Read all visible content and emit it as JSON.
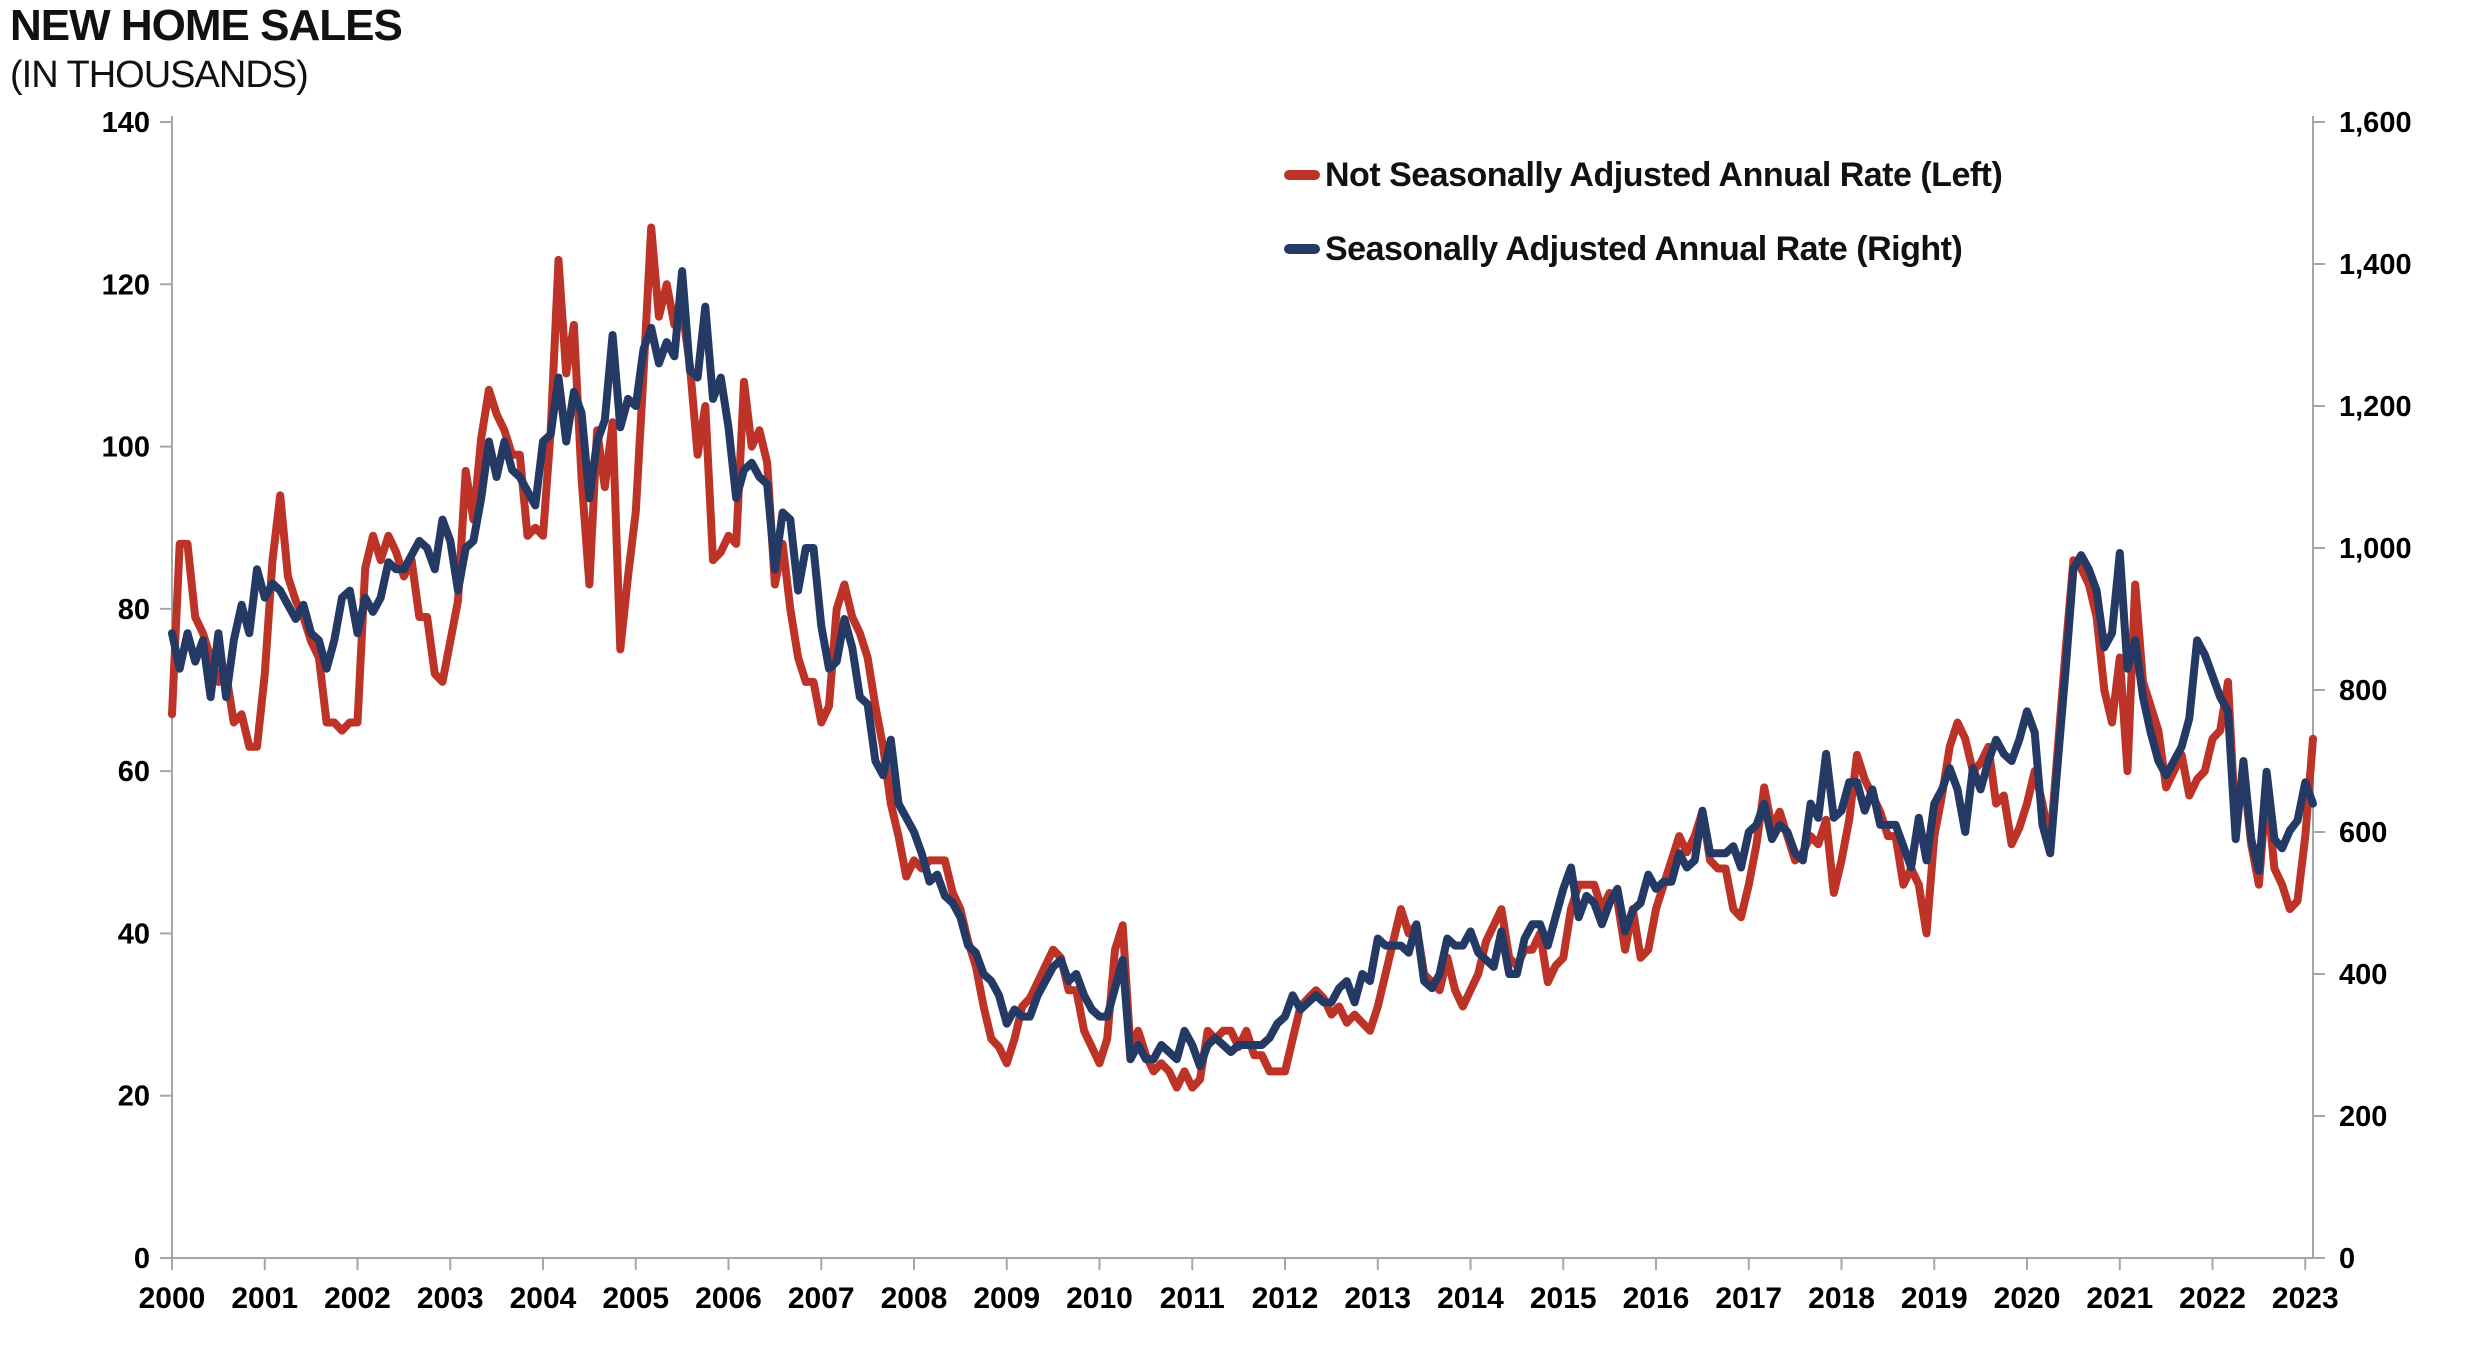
{
  "title": "NEW HOME SALES",
  "subtitle": "(IN THOUSANDS)",
  "legend": {
    "items": [
      {
        "label": "Not Seasonally Adjusted Annual Rate (Left)",
        "color": "#BE3328"
      },
      {
        "label": "Seasonally Adjusted Annual Rate (Right)",
        "color": "#243A64"
      }
    ]
  },
  "chart_data": {
    "type": "line",
    "title": "NEW HOME SALES (IN THOUSANDS)",
    "frequency": "monthly",
    "x_start": "2000-01",
    "x_end": "2023-02",
    "grid": "off",
    "legend_position": "top-right-inside",
    "x_tick_labels": [
      "2000",
      "2001",
      "2002",
      "2003",
      "2004",
      "2005",
      "2006",
      "2007",
      "2008",
      "2009",
      "2010",
      "2011",
      "2012",
      "2013",
      "2014",
      "2015",
      "2016",
      "2017",
      "2018",
      "2019",
      "2020",
      "2021",
      "2022",
      "2023"
    ],
    "left_axis": {
      "min": 0,
      "max": 140,
      "step": 20,
      "tick_labels": [
        "0",
        "20",
        "40",
        "60",
        "80",
        "100",
        "120",
        "140"
      ]
    },
    "right_axis": {
      "min": 0,
      "max": 1600,
      "step": 200,
      "tick_labels": [
        "0",
        "200",
        "400",
        "600",
        "800",
        "1,000",
        "1,200",
        "1,400",
        "1,600"
      ]
    },
    "axis_color": "#A6A6A6",
    "series": [
      {
        "name": "Not Seasonally Adjusted Annual Rate (Left)",
        "axis": "left",
        "color": "#BE3328",
        "values": [
          67,
          88,
          88,
          79,
          77,
          74,
          71,
          72,
          66,
          67,
          63,
          63,
          72,
          86,
          94,
          84,
          81,
          79,
          76,
          74,
          66,
          66,
          65,
          66,
          66,
          85,
          89,
          86,
          89,
          87,
          84,
          86,
          79,
          79,
          72,
          71,
          76,
          81,
          97,
          91,
          101,
          107,
          104,
          102,
          99,
          99,
          89,
          90,
          89,
          102,
          123,
          109,
          115,
          96,
          83,
          102,
          95,
          103,
          75,
          84,
          92,
          109,
          127,
          116,
          120,
          115,
          117,
          110,
          99,
          105,
          86,
          87,
          89,
          88,
          108,
          100,
          102,
          98,
          83,
          88,
          80,
          74,
          71,
          71,
          66,
          68,
          80,
          83,
          79,
          77,
          74,
          68,
          63,
          56,
          52,
          47,
          49,
          48,
          49,
          49,
          49,
          45,
          43,
          39,
          36,
          31,
          27,
          26,
          24,
          27,
          31,
          32,
          34,
          36,
          38,
          37,
          33,
          33,
          28,
          26,
          24,
          27,
          38,
          41,
          26,
          28,
          25,
          23,
          24,
          23,
          21,
          23,
          21,
          22,
          28,
          27,
          28,
          28,
          26,
          28,
          25,
          25,
          23,
          23,
          23,
          27,
          31,
          32,
          33,
          32,
          30,
          31,
          29,
          30,
          29,
          28,
          31,
          35,
          39,
          43,
          40,
          41,
          35,
          34,
          33,
          37,
          33,
          31,
          33,
          35,
          39,
          41,
          43,
          37,
          36,
          38,
          38,
          40,
          34,
          36,
          37,
          43,
          46,
          46,
          46,
          43,
          45,
          44,
          38,
          43,
          37,
          38,
          43,
          46,
          49,
          52,
          50,
          52,
          55,
          49,
          48,
          48,
          43,
          42,
          46,
          51,
          58,
          53,
          55,
          52,
          49,
          50,
          52,
          51,
          54,
          45,
          49,
          54,
          62,
          59,
          57,
          55,
          52,
          52,
          46,
          48,
          46,
          40,
          52,
          57,
          63,
          66,
          64,
          60,
          61,
          63,
          56,
          57,
          51,
          53,
          56,
          60,
          56,
          51,
          63,
          75,
          86,
          85,
          83,
          79,
          70,
          66,
          74,
          60,
          83,
          71,
          68,
          65,
          58,
          60,
          62,
          57,
          59,
          60,
          64,
          65,
          71,
          53,
          60,
          51,
          46,
          58,
          48,
          46,
          43,
          44,
          52,
          64
        ]
      },
      {
        "name": "Seasonally Adjusted Annual Rate (Right)",
        "axis": "right",
        "color": "#243A64",
        "values": [
          880,
          830,
          880,
          840,
          870,
          790,
          880,
          790,
          870,
          920,
          880,
          970,
          930,
          950,
          940,
          920,
          900,
          920,
          880,
          870,
          830,
          870,
          930,
          940,
          880,
          930,
          910,
          930,
          980,
          970,
          970,
          990,
          1010,
          1000,
          970,
          1040,
          1010,
          940,
          1000,
          1010,
          1070,
          1150,
          1100,
          1150,
          1110,
          1100,
          1080,
          1060,
          1150,
          1160,
          1240,
          1150,
          1220,
          1190,
          1070,
          1150,
          1180,
          1300,
          1170,
          1210,
          1200,
          1280,
          1310,
          1260,
          1290,
          1270,
          1390,
          1250,
          1240,
          1340,
          1210,
          1240,
          1170,
          1070,
          1110,
          1120,
          1100,
          1090,
          970,
          1050,
          1040,
          940,
          1000,
          1000,
          890,
          830,
          840,
          900,
          860,
          790,
          780,
          700,
          680,
          730,
          640,
          620,
          600,
          570,
          530,
          540,
          510,
          500,
          480,
          440,
          430,
          400,
          390,
          370,
          330,
          350,
          340,
          340,
          370,
          390,
          410,
          420,
          390,
          400,
          370,
          350,
          340,
          340,
          380,
          420,
          280,
          300,
          280,
          280,
          300,
          290,
          280,
          320,
          300,
          270,
          300,
          310,
          300,
          290,
          300,
          300,
          300,
          300,
          310,
          330,
          340,
          370,
          350,
          360,
          370,
          360,
          360,
          380,
          390,
          360,
          400,
          390,
          450,
          440,
          440,
          440,
          430,
          470,
          390,
          380,
          400,
          450,
          440,
          440,
          460,
          430,
          420,
          410,
          460,
          400,
          400,
          450,
          470,
          470,
          440,
          480,
          520,
          550,
          480,
          510,
          500,
          470,
          500,
          520,
          460,
          490,
          500,
          540,
          520,
          530,
          530,
          570,
          550,
          560,
          630,
          570,
          570,
          570,
          580,
          550,
          600,
          610,
          640,
          590,
          610,
          600,
          570,
          560,
          640,
          620,
          710,
          620,
          630,
          670,
          670,
          630,
          660,
          610,
          610,
          610,
          580,
          550,
          620,
          560,
          640,
          660,
          690,
          660,
          600,
          690,
          660,
          700,
          730,
          710,
          700,
          730,
          770,
          740,
          610,
          570,
          700,
          830,
          970,
          990,
          970,
          940,
          860,
          880,
          993,
          830,
          870,
          790,
          740,
          700,
          680,
          700,
          720,
          760,
          870,
          850,
          820,
          790,
          770,
          590,
          700,
          590,
          545,
          685,
          590,
          577,
          602,
          616,
          670,
          640
        ]
      }
    ]
  }
}
